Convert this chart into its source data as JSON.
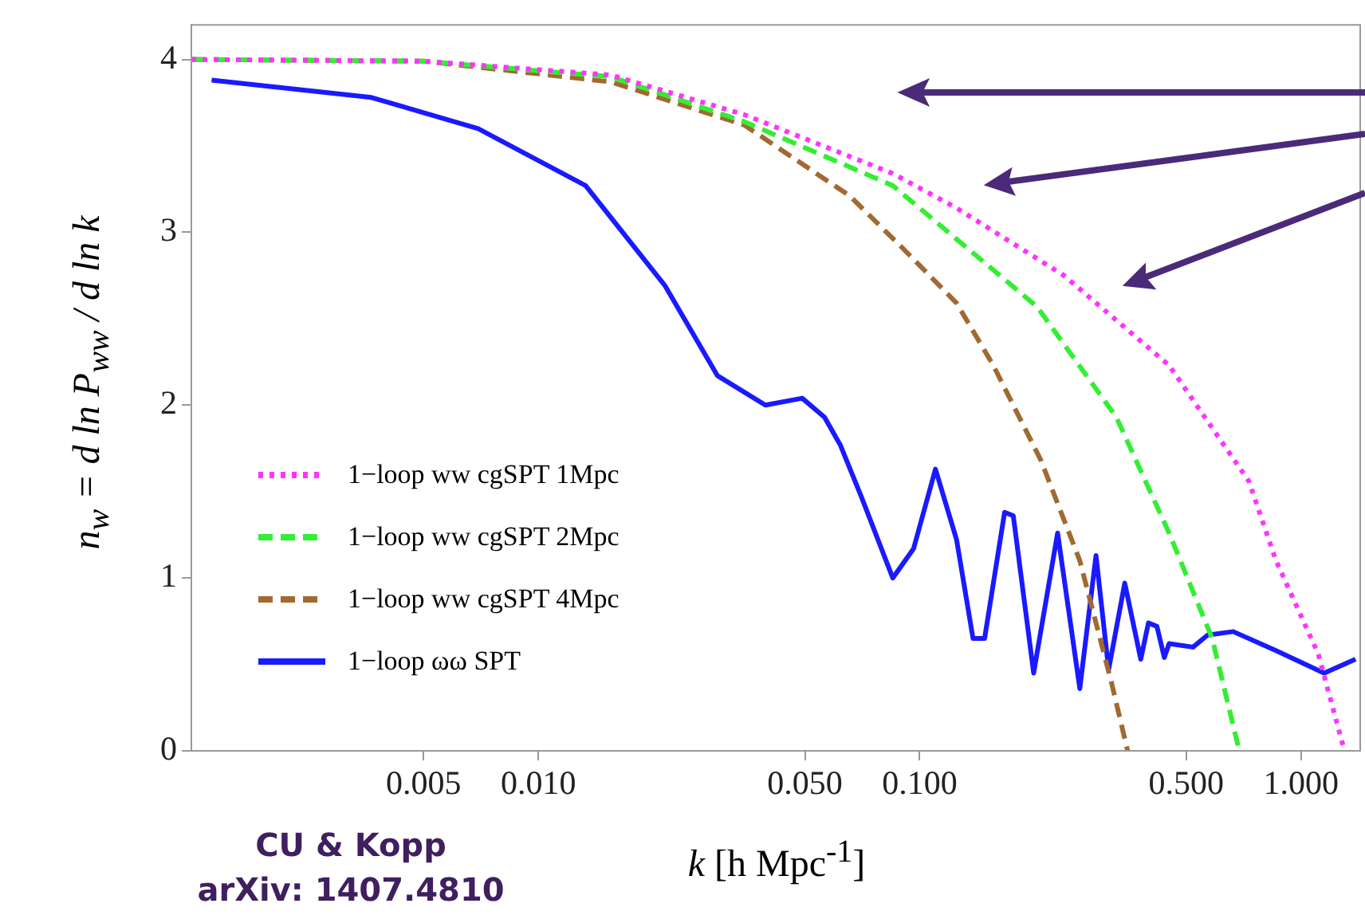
{
  "chart_data": {
    "type": "line",
    "xlabel": "k [h Mpc$^{-1}$]",
    "ylabel": "n$_{w}$ = d ln P$_{ww}$ / d ln k",
    "log": "x",
    "xlim": [
      0.00123,
      1.43
    ],
    "ylim": [
      0,
      4.2
    ],
    "xticks": [
      {
        "value": 0.005,
        "label": "0.005"
      },
      {
        "value": 0.01,
        "label": "0.010"
      },
      {
        "value": 0.05,
        "label": "0.050"
      },
      {
        "value": 0.1,
        "label": "0.100"
      },
      {
        "value": 0.5,
        "label": "0.500"
      },
      {
        "value": 1,
        "label": "1.000"
      }
    ],
    "yticks": [
      0,
      1,
      2,
      3,
      4
    ],
    "grid": false,
    "legend": "left",
    "marker": "none",
    "annotations": [
      "CU & Kopp",
      "arXiv: 1407.4810"
    ],
    "series": [
      {
        "name": "1−loop ww cgSPT 1Mpc",
        "color": "#ff33ff",
        "line_style": "dotted",
        "x": [
          0.00123,
          0.005,
          0.0155,
          0.0347,
          0.085,
          0.125,
          0.239,
          0.451,
          0.73,
          0.86,
          1.11,
          1.3
        ],
        "values": [
          4,
          3.99,
          3.91,
          3.68,
          3.34,
          3.14,
          2.75,
          2.23,
          1.56,
          1.1,
          0.56,
          0
        ]
      },
      {
        "name": "1−loop ww cgSPT 2Mpc",
        "color": "#33ee33",
        "line_style": "dashed",
        "x": [
          0.00123,
          0.005,
          0.0155,
          0.0347,
          0.085,
          0.125,
          0.203,
          0.328,
          0.451,
          0.585,
          0.689
        ],
        "values": [
          4,
          3.99,
          3.9,
          3.64,
          3.27,
          2.96,
          2.57,
          1.93,
          1.26,
          0.65,
          0
        ]
      },
      {
        "name": "1−loop ww cgSPT 4Mpc",
        "color": "#a06a30",
        "line_style": "dashed",
        "x": [
          0.00123,
          0.005,
          0.0155,
          0.0347,
          0.0656,
          0.091,
          0.125,
          0.156,
          0.208,
          0.263,
          0.318,
          0.351
        ],
        "values": [
          4,
          3.99,
          3.87,
          3.62,
          3.21,
          2.9,
          2.59,
          2.23,
          1.68,
          1.1,
          0.4,
          0
        ]
      },
      {
        "name": "1−loop ωω SPT",
        "color": "#1a1aff",
        "line_style": "solid",
        "x": [
          0.00139,
          0.00365,
          0.00695,
          0.0133,
          0.0215,
          0.0295,
          0.0394,
          0.0492,
          0.0563,
          0.0619,
          0.0703,
          0.085,
          0.0964,
          0.11,
          0.125,
          0.138,
          0.148,
          0.167,
          0.176,
          0.199,
          0.23,
          0.263,
          0.29,
          0.313,
          0.345,
          0.38,
          0.398,
          0.419,
          0.438,
          0.451,
          0.521,
          0.569,
          0.664,
          0.86,
          1.15,
          1.39
        ],
        "values": [
          3.88,
          3.78,
          3.6,
          3.27,
          2.69,
          2.17,
          2.0,
          2.04,
          1.93,
          1.77,
          1.47,
          1.0,
          1.17,
          1.63,
          1.22,
          0.65,
          0.65,
          1.38,
          1.36,
          0.45,
          1.26,
          0.36,
          1.13,
          0.47,
          0.97,
          0.53,
          0.74,
          0.72,
          0.54,
          0.62,
          0.6,
          0.67,
          0.69,
          0.58,
          0.45,
          0.53
        ]
      }
    ]
  }
}
